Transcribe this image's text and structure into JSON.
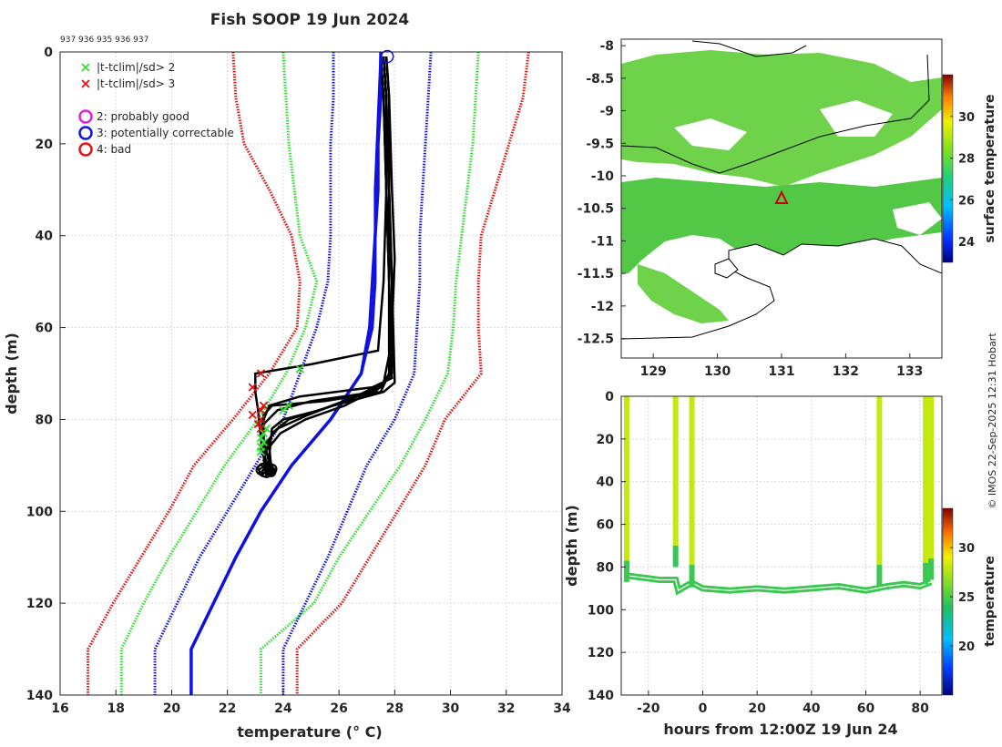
{
  "figure": {
    "title": "Fish SOOP 19 Jun 2024",
    "header_ids": "937 936 935 936 937",
    "copyright": "© IMOS 22-Sep-2025 12:31 Hobart"
  },
  "chart_data": [
    {
      "id": "profile",
      "type": "line",
      "title": "Fish SOOP 19 Jun 2024",
      "xlabel": "temperature (° C)",
      "ylabel": "depth (m)",
      "xlim": [
        16,
        34
      ],
      "ylim": [
        0,
        140
      ],
      "y_inverted": true,
      "xticks": [
        16,
        18,
        20,
        22,
        24,
        26,
        28,
        30,
        32,
        34
      ],
      "yticks": [
        0,
        20,
        40,
        60,
        80,
        100,
        120,
        140
      ],
      "grid": true,
      "legend": {
        "position": "top-left",
        "entries": [
          {
            "marker": "x",
            "color": "#33dd33",
            "label": "|t-tclim|/sd> 2"
          },
          {
            "marker": "x",
            "color": "#dd1111",
            "label": "|t-tclim|/sd> 3"
          },
          {
            "marker": "o",
            "color": "#dd22dd",
            "label": "2: probably good"
          },
          {
            "marker": "o",
            "color": "#1111ee",
            "label": "3: potentially correctable"
          },
          {
            "marker": "o",
            "color": "#ee1111",
            "label": "4: bad"
          }
        ]
      },
      "climatology_depths": [
        0,
        10,
        20,
        30,
        40,
        50,
        60,
        70,
        80,
        90,
        100,
        110,
        120,
        130,
        140
      ],
      "climatology": [
        {
          "name": "mean",
          "color": "#1010e0",
          "style": "solid",
          "values": [
            27.5,
            27.5,
            27.4,
            27.4,
            27.3,
            27.2,
            27.1,
            26.8,
            25.7,
            24.3,
            23.2,
            22.3,
            21.5,
            20.7,
            20.7
          ]
        },
        {
          "name": "mean-1sd",
          "color": "#1010e0",
          "style": "dotted",
          "values": [
            25.8,
            25.8,
            25.7,
            25.7,
            25.7,
            25.6,
            25.2,
            24.6,
            24.0,
            23.0,
            22.0,
            21.0,
            20.2,
            19.4,
            19.4
          ]
        },
        {
          "name": "mean+1sd",
          "color": "#1010e0",
          "style": "dotted",
          "values": [
            29.3,
            29.2,
            29.1,
            29.0,
            28.9,
            28.9,
            28.8,
            28.7,
            28.0,
            27.0,
            26.3,
            25.6,
            24.8,
            24.0,
            24.0
          ]
        },
        {
          "name": "mean-2sd",
          "color": "#33dd33",
          "style": "dotted",
          "values": [
            24.0,
            24.1,
            24.2,
            24.4,
            24.6,
            25.2,
            24.8,
            24.1,
            23.1,
            21.9,
            20.9,
            19.9,
            19.0,
            18.2,
            18.2
          ]
        },
        {
          "name": "mean+2sd",
          "color": "#33dd33",
          "style": "dotted",
          "values": [
            31.0,
            30.9,
            30.8,
            30.6,
            30.4,
            30.2,
            30.1,
            29.9,
            29.1,
            28.2,
            27.1,
            26.0,
            25.1,
            23.2,
            23.2
          ]
        },
        {
          "name": "mean-3sd",
          "color": "#dd1111",
          "style": "dotted",
          "values": [
            22.2,
            22.3,
            22.6,
            23.5,
            24.3,
            24.6,
            24.5,
            23.5,
            22.2,
            20.8,
            19.9,
            18.9,
            17.9,
            17.0,
            17.0
          ]
        },
        {
          "name": "mean+3sd",
          "color": "#dd1111",
          "style": "dotted",
          "values": [
            32.8,
            32.6,
            32.1,
            31.6,
            31.1,
            31.0,
            31.0,
            31.1,
            29.8,
            29.1,
            28.1,
            27.1,
            26.1,
            24.5,
            24.5
          ]
        }
      ],
      "profile_color": "#000000",
      "profiles": [
        {
          "name": "profile-1",
          "points": [
            [
              27.6,
              1
            ],
            [
              27.7,
              10
            ],
            [
              27.8,
              30
            ],
            [
              27.8,
              50
            ],
            [
              27.8,
              65
            ],
            [
              27.8,
              70
            ],
            [
              27.5,
              74
            ],
            [
              25.5,
              76
            ],
            [
              23.6,
              77
            ],
            [
              23.3,
              79
            ],
            [
              23.2,
              83
            ],
            [
              23.3,
              88
            ],
            [
              23.4,
              92
            ]
          ]
        },
        {
          "name": "profile-2",
          "points": [
            [
              27.5,
              1
            ],
            [
              27.6,
              10
            ],
            [
              27.7,
              30
            ],
            [
              27.6,
              50
            ],
            [
              27.4,
              65
            ],
            [
              25.0,
              68
            ],
            [
              23.0,
              70
            ],
            [
              23.0,
              74
            ],
            [
              23.1,
              78
            ],
            [
              23.2,
              84
            ],
            [
              23.4,
              92
            ]
          ]
        },
        {
          "name": "profile-3",
          "points": [
            [
              27.7,
              1
            ],
            [
              27.8,
              10
            ],
            [
              27.9,
              30
            ],
            [
              28.0,
              45
            ],
            [
              27.9,
              60
            ],
            [
              27.9,
              70
            ],
            [
              27.3,
              74
            ],
            [
              25.0,
              76
            ],
            [
              23.8,
              78
            ],
            [
              23.3,
              81
            ],
            [
              23.3,
              87
            ],
            [
              23.5,
              92
            ]
          ]
        },
        {
          "name": "profile-4",
          "points": [
            [
              27.6,
              1
            ],
            [
              27.7,
              10
            ],
            [
              27.7,
              30
            ],
            [
              27.8,
              50
            ],
            [
              27.8,
              65
            ],
            [
              27.9,
              71
            ],
            [
              27.2,
              73
            ],
            [
              24.6,
              75
            ],
            [
              23.5,
              77
            ],
            [
              23.3,
              80
            ],
            [
              23.2,
              86
            ],
            [
              23.5,
              92
            ]
          ]
        },
        {
          "name": "profile-5",
          "points": [
            [
              27.6,
              1
            ],
            [
              27.7,
              10
            ],
            [
              27.8,
              30
            ],
            [
              27.9,
              50
            ],
            [
              28.0,
              72
            ],
            [
              27.6,
              74
            ],
            [
              25.8,
              77
            ],
            [
              24.2,
              80
            ],
            [
              23.6,
              83
            ],
            [
              23.4,
              87
            ],
            [
              23.6,
              92
            ]
          ]
        },
        {
          "name": "profile-6",
          "points": [
            [
              27.5,
              1
            ],
            [
              27.6,
              10
            ],
            [
              27.7,
              30
            ],
            [
              27.8,
              50
            ],
            [
              27.9,
              68
            ],
            [
              27.8,
              71
            ],
            [
              27.1,
              74
            ],
            [
              25.3,
              78
            ],
            [
              24.0,
              80
            ],
            [
              23.6,
              82
            ],
            [
              23.5,
              88
            ],
            [
              23.4,
              92
            ]
          ]
        },
        {
          "name": "profile-7",
          "points": [
            [
              27.7,
              1
            ],
            [
              27.8,
              10
            ],
            [
              27.8,
              30
            ],
            [
              27.9,
              50
            ],
            [
              27.9,
              69
            ],
            [
              27.5,
              73
            ],
            [
              26.2,
              77
            ],
            [
              24.8,
              80
            ],
            [
              23.9,
              83
            ],
            [
              23.5,
              86
            ],
            [
              23.6,
              92
            ]
          ]
        },
        {
          "name": "profile-8",
          "points": [
            [
              27.5,
              1
            ],
            [
              27.6,
              10
            ],
            [
              27.7,
              30
            ],
            [
              27.8,
              50
            ],
            [
              27.8,
              66
            ],
            [
              27.6,
              72
            ],
            [
              26.6,
              75
            ],
            [
              24.9,
              79
            ],
            [
              23.8,
              82
            ],
            [
              23.4,
              85
            ],
            [
              23.3,
              89
            ],
            [
              23.5,
              92
            ]
          ]
        }
      ],
      "highlight_profile": {
        "name": "profile-blue",
        "color": "#1010e0",
        "points": [
          [
            27.5,
            1
          ],
          [
            27.4,
            15
          ],
          [
            27.3,
            30
          ],
          [
            27.3,
            50
          ],
          [
            27.2,
            60
          ],
          [
            27.0,
            65
          ],
          [
            26.8,
            70
          ]
        ]
      },
      "flags_2sd": [
        [
          24.6,
          69
        ],
        [
          24.2,
          77
        ],
        [
          24.0,
          78
        ],
        [
          23.4,
          82
        ],
        [
          23.3,
          83
        ],
        [
          23.2,
          84
        ],
        [
          23.2,
          86
        ],
        [
          23.2,
          87
        ],
        [
          23.3,
          85
        ]
      ],
      "flags_3sd": [
        [
          23.2,
          70
        ],
        [
          22.9,
          73
        ],
        [
          23.3,
          77
        ],
        [
          23.2,
          78
        ],
        [
          22.9,
          79
        ],
        [
          23.2,
          80
        ],
        [
          23.1,
          81
        ],
        [
          23.2,
          82
        ]
      ],
      "qc_circle_blue": [
        27.8,
        1
      ],
      "bottom_blob": {
        "t": 23.4,
        "depth": 91
      }
    },
    {
      "id": "sst-map",
      "type": "heatmap",
      "xlabel": "",
      "ylabel": "",
      "xlim": [
        128.5,
        133.5
      ],
      "ylim": [
        -12.8,
        -7.9
      ],
      "xticks": [
        129,
        130,
        131,
        132,
        133
      ],
      "yticks": [
        -8,
        -8.5,
        -9,
        -9.5,
        -10,
        -10.5,
        -11,
        -11.5,
        -12,
        -12.5
      ],
      "colorbar": {
        "label": "surface temperature",
        "range": [
          23,
          32
        ],
        "ticks": [
          24,
          26,
          28,
          30
        ]
      },
      "marker": {
        "lon": 131.0,
        "lat": -10.35,
        "symbol": "triangle",
        "color": "#cc0000"
      }
    },
    {
      "id": "depth-time",
      "type": "scatter",
      "xlabel": "hours from 12:00Z 19 Jun 24",
      "ylabel": "depth (m)",
      "xlim": [
        -30,
        88
      ],
      "ylim": [
        0,
        140
      ],
      "y_inverted": true,
      "xticks": [
        -20,
        0,
        20,
        40,
        60,
        80
      ],
      "yticks": [
        0,
        20,
        40,
        60,
        80,
        100,
        120,
        140
      ],
      "grid": true,
      "colorbar": {
        "label": "temperature",
        "range": [
          15,
          34
        ],
        "ticks": [
          20,
          25,
          30
        ]
      },
      "casts": [
        {
          "hour": -28,
          "bottom": 77,
          "surface_temp": 28.0,
          "deep_temp": 24.6
        },
        {
          "hour": -10,
          "bottom": 70,
          "surface_temp": 28.0,
          "deep_temp": 24.5
        },
        {
          "hour": -4,
          "bottom": 79,
          "surface_temp": 28.0,
          "deep_temp": 24.6
        },
        {
          "hour": 65,
          "bottom": 79,
          "surface_temp": 28.0,
          "deep_temp": 24.6
        },
        {
          "hour": 82,
          "bottom": 78,
          "surface_temp": 28.0,
          "deep_temp": 24.6
        },
        {
          "hour": 84,
          "bottom": 76,
          "surface_temp": 28.0,
          "deep_temp": 24.6
        }
      ],
      "track": {
        "deep_temp": 24.6,
        "points": [
          [
            -28,
            84
          ],
          [
            -22,
            85
          ],
          [
            -16,
            86
          ],
          [
            -10,
            86
          ],
          [
            -9,
            91
          ],
          [
            -5,
            88
          ],
          [
            -3,
            88
          ],
          [
            0,
            90
          ],
          [
            10,
            91
          ],
          [
            20,
            90
          ],
          [
            30,
            91
          ],
          [
            40,
            90
          ],
          [
            50,
            89
          ],
          [
            60,
            91
          ],
          [
            64,
            90
          ],
          [
            68,
            89
          ],
          [
            74,
            88
          ],
          [
            80,
            89
          ],
          [
            84,
            87
          ]
        ]
      }
    }
  ]
}
